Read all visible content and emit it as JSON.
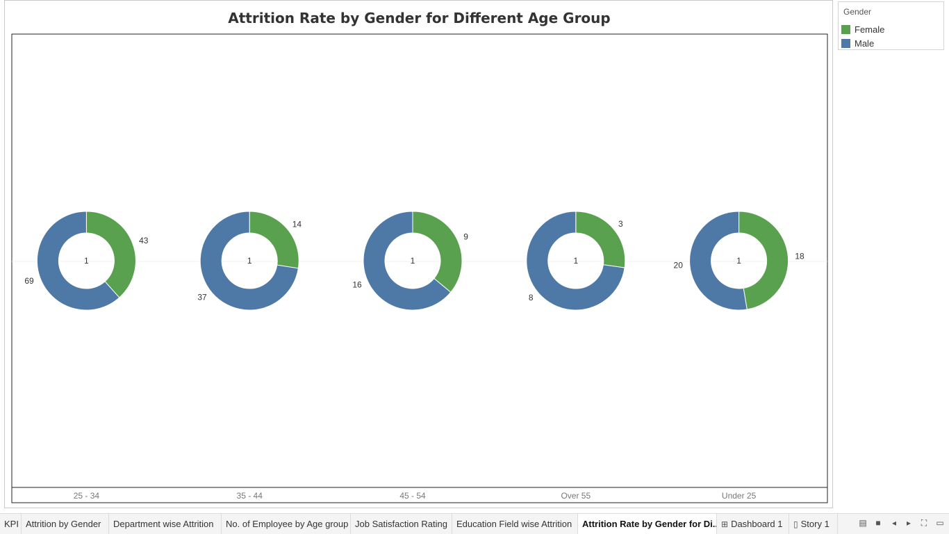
{
  "chart_data": {
    "type": "pie",
    "subtype": "donut",
    "title": "Attrition Rate by Gender for Different Age Group",
    "categories": [
      "25 - 34",
      "35 - 44",
      "45 - 54",
      "Over 55",
      "Under 25"
    ],
    "series": [
      {
        "name": "Female",
        "color": "#59a14f",
        "values": [
          43,
          14,
          9,
          3,
          18
        ]
      },
      {
        "name": "Male",
        "color": "#4e79a7",
        "values": [
          69,
          37,
          16,
          8,
          20
        ]
      }
    ],
    "center_labels": [
      "1",
      "1",
      "1",
      "1",
      "1"
    ]
  },
  "legend": {
    "title": "Gender",
    "items": [
      {
        "label": "Female",
        "color": "#59a14f"
      },
      {
        "label": "Male",
        "color": "#4e79a7"
      }
    ]
  },
  "tabs": [
    {
      "label": "KPI",
      "icon": ""
    },
    {
      "label": "Attrition by Gender",
      "icon": ""
    },
    {
      "label": "Department wise Attrition",
      "icon": ""
    },
    {
      "label": "No. of Employee by Age group",
      "icon": ""
    },
    {
      "label": "Job Satisfaction Rating",
      "icon": ""
    },
    {
      "label": "Education Field wise Attrition",
      "icon": ""
    },
    {
      "label": "Attrition Rate by Gender for Di...",
      "icon": ""
    },
    {
      "label": "Dashboard 1",
      "icon": "dashboard-icon"
    },
    {
      "label": "Story 1",
      "icon": "story-icon"
    }
  ],
  "nav_controls": [
    "show-filmstrip-icon",
    "show-tabs-icon",
    "previous-sheet-icon",
    "next-sheet-icon",
    "presentation-mode-icon",
    "fit-screen-icon"
  ]
}
